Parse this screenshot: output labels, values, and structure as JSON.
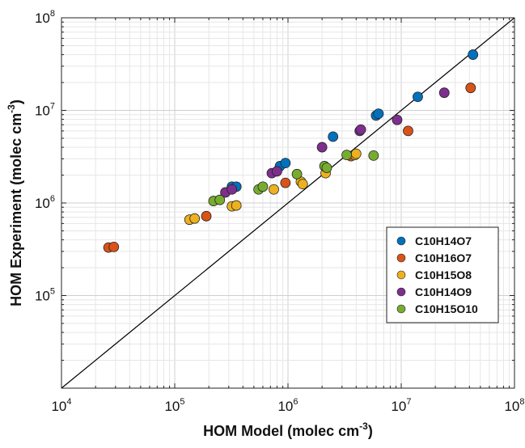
{
  "chart_data": {
    "type": "scatter",
    "xlabel": {
      "text": "HOM Model (molec cm",
      "sup": "-3",
      "close": ")"
    },
    "ylabel": {
      "text": "HOM Experiment (molec cm",
      "sup": "-3",
      "close": ")"
    },
    "x_scale": "log",
    "y_scale": "log",
    "xlim": [
      10000,
      100000000
    ],
    "ylim": [
      10000,
      100000000
    ],
    "x_ticks": [
      {
        "base": "10",
        "exp": "4",
        "value": 10000
      },
      {
        "base": "10",
        "exp": "5",
        "value": 100000
      },
      {
        "base": "10",
        "exp": "6",
        "value": 1000000
      },
      {
        "base": "10",
        "exp": "7",
        "value": 10000000
      },
      {
        "base": "10",
        "exp": "8",
        "value": 100000000
      }
    ],
    "y_ticks": [
      {
        "base": "10",
        "exp": "5",
        "value": 100000
      },
      {
        "base": "10",
        "exp": "6",
        "value": 1000000
      },
      {
        "base": "10",
        "exp": "7",
        "value": 10000000
      },
      {
        "base": "10",
        "exp": "8",
        "value": 100000000
      }
    ],
    "grid": true,
    "reference_line": "1:1",
    "legend_position": "bottom-right",
    "series": [
      {
        "name": "C10H14O7",
        "color": "#0072BD",
        "points": [
          [
            320000,
            1500000
          ],
          [
            350000,
            1500000
          ],
          [
            850000,
            2500000
          ],
          [
            950000,
            2700000
          ],
          [
            2500000,
            5200000
          ],
          [
            6000000,
            8800000
          ],
          [
            6300000,
            9200000
          ],
          [
            14000000,
            14000000
          ],
          [
            43000000,
            40000000
          ]
        ]
      },
      {
        "name": "C10H16O7",
        "color": "#D95319",
        "points": [
          [
            26000,
            330000
          ],
          [
            29000,
            335000
          ],
          [
            190000,
            720000
          ],
          [
            950000,
            1650000
          ],
          [
            3600000,
            3200000
          ],
          [
            11500000,
            6000000
          ],
          [
            41000000,
            17500000
          ]
        ]
      },
      {
        "name": "C10H15O8",
        "color": "#EDB120",
        "points": [
          [
            135000,
            660000
          ],
          [
            150000,
            680000
          ],
          [
            320000,
            920000
          ],
          [
            350000,
            940000
          ],
          [
            750000,
            1400000
          ],
          [
            1300000,
            1700000
          ],
          [
            1350000,
            1600000
          ],
          [
            2150000,
            2100000
          ],
          [
            3900000,
            3300000
          ],
          [
            4000000,
            3400000
          ]
        ]
      },
      {
        "name": "C10H14O9",
        "color": "#7E2F8E",
        "points": [
          [
            280000,
            1300000
          ],
          [
            320000,
            1400000
          ],
          [
            720000,
            2100000
          ],
          [
            800000,
            2200000
          ],
          [
            2000000,
            4000000
          ],
          [
            4300000,
            6000000
          ],
          [
            4400000,
            6200000
          ],
          [
            9200000,
            7900000
          ],
          [
            24000000,
            15500000
          ]
        ]
      },
      {
        "name": "C10H15O10",
        "color": "#77AC30",
        "points": [
          [
            220000,
            1050000
          ],
          [
            250000,
            1080000
          ],
          [
            550000,
            1400000
          ],
          [
            600000,
            1500000
          ],
          [
            1200000,
            2050000
          ],
          [
            2100000,
            2500000
          ],
          [
            2200000,
            2400000
          ],
          [
            3300000,
            3300000
          ],
          [
            5700000,
            3250000
          ]
        ]
      }
    ]
  }
}
